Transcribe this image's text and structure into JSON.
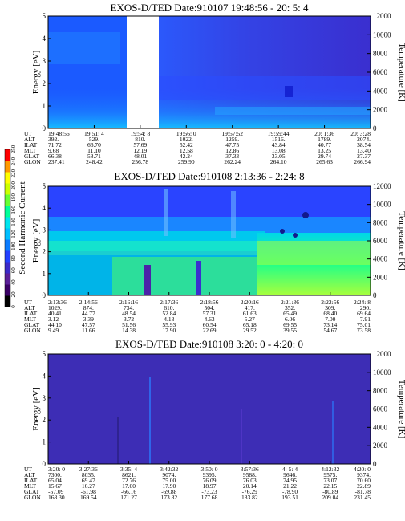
{
  "chart_data": {
    "type": "heatmap",
    "colorbar": {
      "label": "Second Harmonic Current",
      "ticks": [
        "0",
        "20",
        "40",
        "60",
        "80",
        "100",
        "120",
        "140",
        "160",
        "180",
        "200",
        "220",
        "240",
        "250"
      ],
      "colors": [
        "#000000",
        "#3a0066",
        "#5a1f99",
        "#3b2ac9",
        "#2340ff",
        "#0b7cff",
        "#00bfff",
        "#00e5ee",
        "#00ff99",
        "#66ff33",
        "#ccff00",
        "#ffff00",
        "#ff9900",
        "#ff0000"
      ]
    },
    "panels": [
      {
        "title": "EXOS-D/TED    Date:910107  19:48:56 - 20: 5: 4",
        "ylabel": "Energy [eV]",
        "ylabel_right": "Temperature [K]",
        "ylim": [
          0,
          5
        ],
        "yticks": [
          "0",
          "1",
          "2",
          "3",
          "4",
          "5"
        ],
        "ylim_right": [
          0,
          12000
        ],
        "yticks_right": [
          "0",
          "2000",
          "4000",
          "6000",
          "8000",
          "10000",
          "12000"
        ],
        "table": {
          "row_labels": [
            "UT",
            "ALT",
            "ILAT",
            "MLT",
            "GLAT",
            "GLON"
          ],
          "columns": [
            [
              "19:48:56",
              "392.",
              "71.72",
              "9.68",
              "66.38",
              "237.41"
            ],
            [
              "19:51: 4",
              "529.",
              "66.70",
              "11.10",
              "58.71",
              "248.42"
            ],
            [
              "19:54: 8",
              "810.",
              "57.69",
              "12.19",
              "48.01",
              "256.78"
            ],
            [
              "19:56: 0",
              "1022.",
              "52.42",
              "12.58",
              "42.24",
              "259.90"
            ],
            [
              "19:57:52",
              "1259.",
              "47.75",
              "12.86",
              "37.33",
              "262.24"
            ],
            [
              "19:59:44",
              "1516.",
              "43.84",
              "13.08",
              "33.05",
              "264.10"
            ],
            [
              "20: 1:36",
              "1789.",
              "40.77",
              "13.25",
              "29.74",
              "265.63"
            ],
            [
              "20: 3:28",
              "2074.",
              "38.54",
              "13.40",
              "27.37",
              "266.94"
            ]
          ]
        }
      },
      {
        "title": "EXOS-D/TED    Date:910108  2:13:36 - 2:24: 8",
        "ylabel": "Energy [eV]",
        "ylabel_right": "Temperature [K]",
        "ylim": [
          0,
          5
        ],
        "yticks": [
          "0",
          "1",
          "2",
          "3",
          "4",
          "5"
        ],
        "ylim_right": [
          0,
          12000
        ],
        "yticks_right": [
          "0",
          "2000",
          "4000",
          "6000",
          "8000",
          "10000",
          "12000"
        ],
        "table": {
          "row_labels": [
            "UT",
            "ALT",
            "ILAT",
            "MLT",
            "GLAT",
            "GLON"
          ],
          "columns": [
            [
              "2:13:36",
              "1029.",
              "40.41",
              "3.12",
              "44.10",
              "9.49"
            ],
            [
              "2:14:56",
              "874.",
              "44.77",
              "3.39",
              "47.57",
              "11.66"
            ],
            [
              "2:16:16",
              "734.",
              "48.54",
              "3.72",
              "51.56",
              "14.38"
            ],
            [
              "2:17:36",
              "610.",
              "52.84",
              "4.13",
              "55.93",
              "17.90"
            ],
            [
              "2:18:56",
              "504.",
              "57.31",
              "4.63",
              "60.54",
              "22.69"
            ],
            [
              "2:20:16",
              "417.",
              "61.63",
              "5.27",
              "65.18",
              "29.52"
            ],
            [
              "2:21:36",
              "352.",
              "65.49",
              "6.06",
              "69.55",
              "39.55"
            ],
            [
              "2:22:56",
              "309.",
              "68.40",
              "7.00",
              "73.14",
              "54.67"
            ],
            [
              "2:24: 8",
              "290.",
              "69.64",
              "7.91",
              "75.01",
              "73.58"
            ]
          ]
        }
      },
      {
        "title": "EXOS-D/TED    Date:910108  3:20: 0 - 4:20: 0",
        "ylabel": "Energy [eV]",
        "ylabel_right": "Temperature [K]",
        "ylim": [
          0,
          5
        ],
        "yticks": [
          "0",
          "1",
          "2",
          "3",
          "4",
          "5"
        ],
        "ylim_right": [
          0,
          12000
        ],
        "yticks_right": [
          "0",
          "2000",
          "4000",
          "6000",
          "8000",
          "10000",
          "12000"
        ],
        "table": {
          "row_labels": [
            "UT",
            "ALT",
            "ILAT",
            "MLT",
            "GLAT",
            "GLON"
          ],
          "columns": [
            [
              "3:20: 0",
              "7300.",
              "65.04",
              "15.67",
              "-57.09",
              "168.30"
            ],
            [
              "3:27:36",
              "8035.",
              "69.47",
              "16.27",
              "-61.98",
              "169.54"
            ],
            [
              "3:35: 4",
              "8621.",
              "72.76",
              "17.00",
              "-66.16",
              "171.27"
            ],
            [
              "3:42:32",
              "9074.",
              "75.00",
              "17.90",
              "-69.88",
              "173.82"
            ],
            [
              "3:50: 0",
              "9395.",
              "76.09",
              "18.97",
              "-73.23",
              "177.68"
            ],
            [
              "3:57:36",
              "9588.",
              "76.03",
              "20.14",
              "-76.29",
              "183.82"
            ],
            [
              "4: 5: 4",
              "9646.",
              "74.95",
              "21.22",
              "-78.90",
              "193.51"
            ],
            [
              "4:12:32",
              "9575.",
              "73.07",
              "22.15",
              "-80.89",
              "209.04"
            ],
            [
              "4:20: 0",
              "9374.",
              "70.60",
              "22.89",
              "-81.78",
              "231.45"
            ]
          ]
        }
      }
    ]
  }
}
